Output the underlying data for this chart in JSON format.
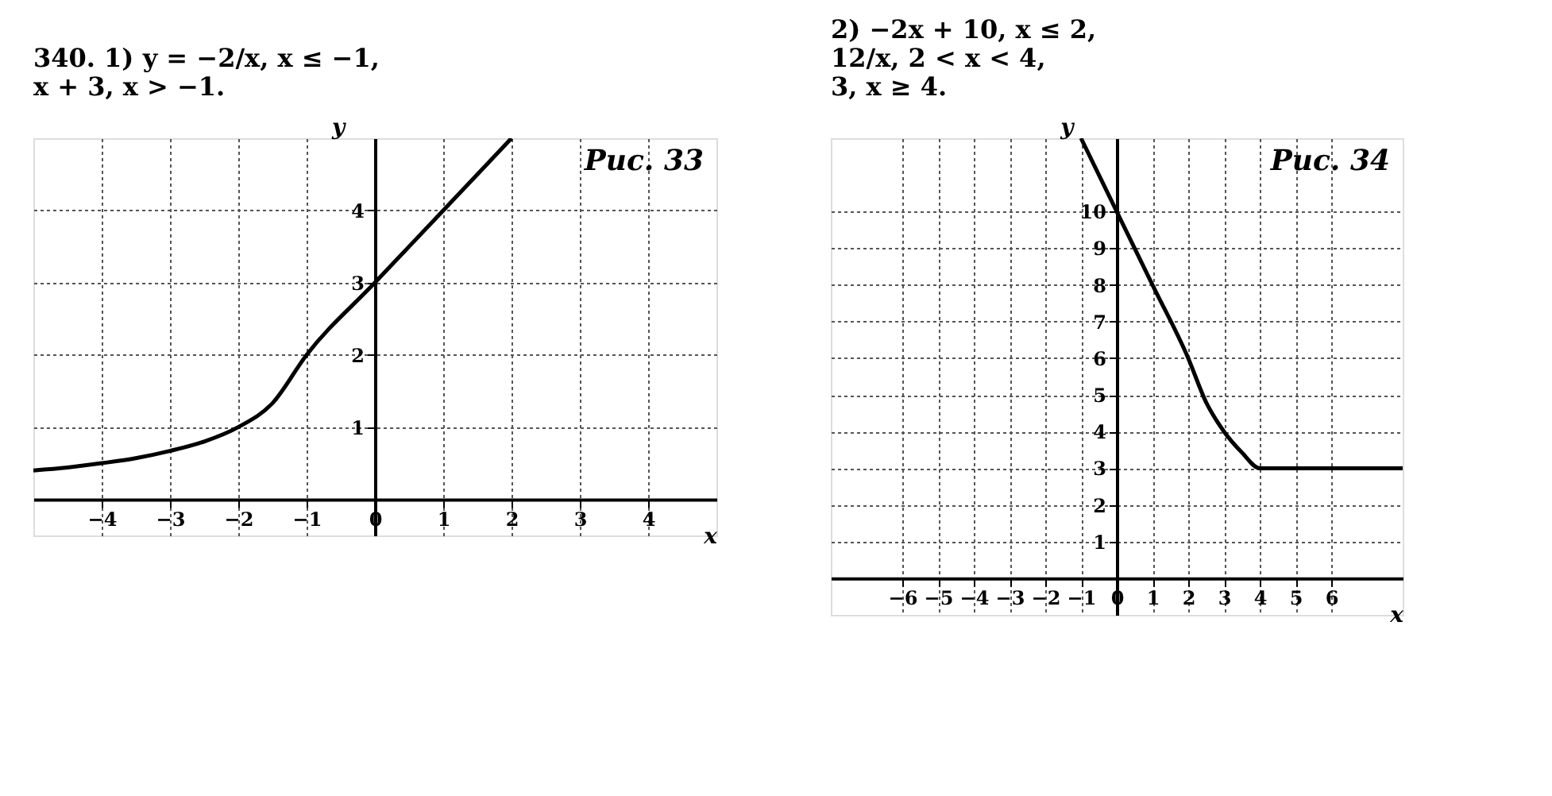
{
  "chart_data": [
    {
      "type": "line",
      "title": "Рис. 33",
      "annotations": [
        "340. 1) y = −2/x, x ≤ −1,",
        "x + 3, x > −1."
      ],
      "xlabel": "x",
      "ylabel": "y",
      "x": [
        -5,
        -4.5,
        -4,
        -3.5,
        -3,
        -2.5,
        -2,
        -1.5,
        -1,
        0,
        1,
        2
      ],
      "series": [
        {
          "color": "#000000",
          "values": [
            0.4,
            0.44,
            0.5,
            0.57,
            0.67,
            0.8,
            1,
            1.33,
            2,
            3,
            4,
            5
          ]
        }
      ],
      "xlim": [
        -5,
        5
      ],
      "ylim": [
        -0.5,
        5
      ],
      "xticks": [
        -4,
        -3,
        -2,
        -1,
        0,
        1,
        2,
        3,
        4
      ],
      "yticks": [
        1,
        2,
        3,
        4
      ],
      "grid": true,
      "marker": "none",
      "line_style": "solid"
    },
    {
      "type": "line",
      "title": "Рис. 34",
      "annotations": [
        "2) −2x + 10, x ≤ 2,",
        "12/x, 2 < x < 4,",
        "3, x ≥ 4."
      ],
      "xlabel": "x",
      "ylabel": "y",
      "x": [
        -1,
        0,
        1,
        2,
        2.5,
        3,
        3.5,
        4,
        5,
        6,
        7,
        8
      ],
      "series": [
        {
          "color": "#000000",
          "values": [
            12,
            10,
            8,
            6,
            4.8,
            4,
            3.43,
            3,
            3,
            3,
            3,
            3
          ]
        }
      ],
      "xlim": [
        -8,
        8
      ],
      "ylim": [
        -1,
        12
      ],
      "xticks": [
        -6,
        -5,
        -4,
        -3,
        -2,
        -1,
        0,
        1,
        2,
        3,
        4,
        5,
        6
      ],
      "yticks": [
        1,
        2,
        3,
        4,
        5,
        6,
        7,
        8,
        9,
        10
      ],
      "grid": true,
      "marker": "none",
      "line_style": "solid"
    }
  ]
}
